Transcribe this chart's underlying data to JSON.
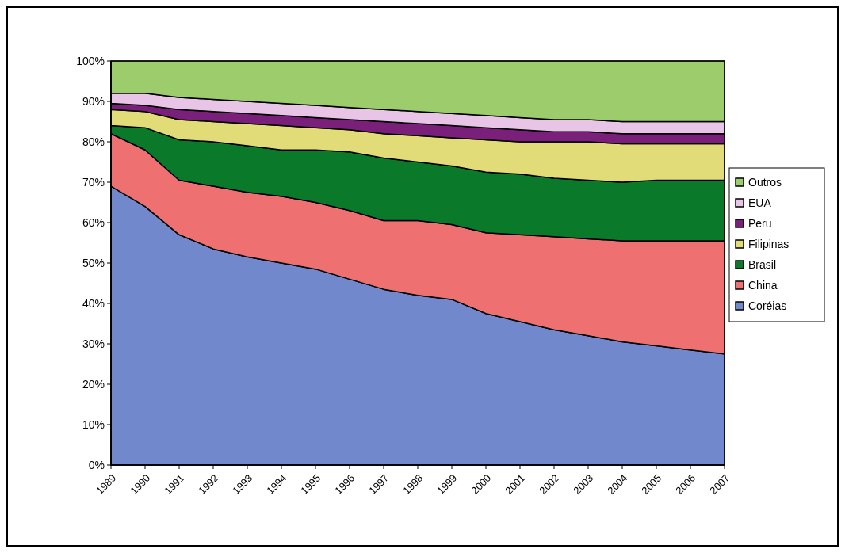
{
  "chart_data": {
    "type": "area",
    "stacked": true,
    "categories": [
      "1989",
      "1990",
      "1991",
      "1992",
      "1993",
      "1994",
      "1995",
      "1996",
      "1997",
      "1998",
      "1999",
      "2000",
      "2001",
      "2002",
      "2003",
      "2004",
      "2005",
      "2006",
      "2007"
    ],
    "ylim": [
      0,
      100
    ],
    "yticks": [
      {
        "value": 0,
        "label": "0%"
      },
      {
        "value": 10,
        "label": "10%"
      },
      {
        "value": 20,
        "label": "20%"
      },
      {
        "value": 30,
        "label": "30%"
      },
      {
        "value": 40,
        "label": "40%"
      },
      {
        "value": 50,
        "label": "50%"
      },
      {
        "value": 60,
        "label": "60%"
      },
      {
        "value": 70,
        "label": "70%"
      },
      {
        "value": 80,
        "label": "80%"
      },
      {
        "value": 90,
        "label": "90%"
      },
      {
        "value": 100,
        "label": "100%"
      }
    ],
    "grid": false,
    "legend": "right",
    "series": [
      {
        "name": "Coréias",
        "color": "#7188cc",
        "values": [
          69,
          64,
          57,
          53.5,
          51.5,
          50,
          48.5,
          46,
          43.5,
          42,
          41,
          37.5,
          35.5,
          33.5,
          32,
          30.5,
          29.5,
          28.5,
          27.5
        ]
      },
      {
        "name": "China",
        "color": "#ee7070",
        "values": [
          13,
          14,
          13.5,
          15.5,
          16,
          16.5,
          16.5,
          17,
          17,
          18.5,
          18.5,
          20,
          21.5,
          23,
          24,
          25,
          26,
          27,
          28
        ]
      },
      {
        "name": "Brasil",
        "color": "#0a7a2a",
        "values": [
          2,
          5.5,
          10,
          11,
          11.5,
          11.5,
          13,
          14.5,
          15.5,
          14.5,
          14.5,
          15,
          15,
          14.5,
          14.5,
          14.5,
          15,
          15,
          15
        ]
      },
      {
        "name": "Filipinas",
        "color": "#e2dc78",
        "values": [
          4,
          4,
          5,
          5,
          5.5,
          6,
          5.5,
          5.5,
          6,
          6.5,
          7,
          8,
          8,
          9,
          9.5,
          9.5,
          9,
          9,
          9
        ]
      },
      {
        "name": "Peru",
        "color": "#7a1f7a",
        "values": [
          1.5,
          1.5,
          2.5,
          2.5,
          2.5,
          2.5,
          2.5,
          2.5,
          3,
          3,
          3,
          3,
          3,
          2.5,
          2.5,
          2.5,
          2.5,
          2.5,
          2.5
        ]
      },
      {
        "name": "EUA",
        "color": "#e8c4e6",
        "values": [
          2.5,
          3,
          3,
          3,
          3,
          3,
          3,
          3,
          3,
          3,
          3,
          3,
          3,
          3,
          3,
          3,
          3,
          3,
          3
        ]
      },
      {
        "name": "Outros",
        "color": "#9ccc6c",
        "values": [
          8,
          8,
          9,
          9.5,
          10,
          10.5,
          11,
          11.5,
          12,
          12.5,
          13,
          13.5,
          14,
          14.5,
          14.5,
          15,
          15,
          15,
          15
        ]
      }
    ]
  }
}
